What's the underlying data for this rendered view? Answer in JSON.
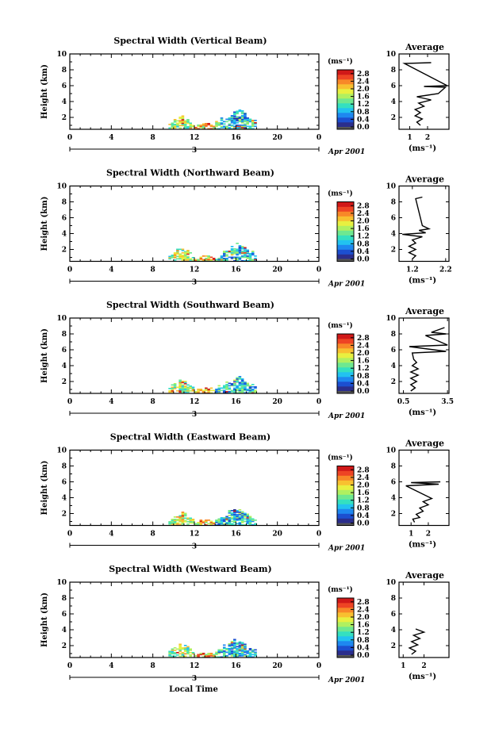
{
  "chart_data": {
    "type": "heatmap",
    "colorbar": {
      "label": "(ms⁻¹)",
      "ticks": [
        "0.0",
        "0.4",
        "0.8",
        "1.2",
        "1.6",
        "2.0",
        "2.4",
        "2.8"
      ],
      "range": [
        0.0,
        3.0
      ]
    },
    "shared": {
      "ylabel": "Height (km)",
      "yticks": [
        "2",
        "4",
        "6",
        "8",
        "10"
      ],
      "ylim": [
        0.5,
        10
      ],
      "xticks": [
        "0",
        "4",
        "8",
        "12",
        "16",
        "20",
        "0"
      ],
      "xlim": [
        0,
        24
      ],
      "date_day": "3",
      "date_label": "Apr 2001",
      "xlabel": "Local Time"
    },
    "panels": [
      {
        "title": "Spectral Width (Vertical Beam)",
        "avg_title": "Average",
        "avg_xticks": [
          "1",
          "2"
        ],
        "avg_xlim": [
          0.4,
          3.2
        ],
        "avg_xlabel": "(ms⁻¹)",
        "avg_profile": [
          [
            1.6,
            1.0
          ],
          [
            1.4,
            1.4
          ],
          [
            1.7,
            1.8
          ],
          [
            1.3,
            2.2
          ],
          [
            1.6,
            2.6
          ],
          [
            1.3,
            3.0
          ],
          [
            1.8,
            3.4
          ],
          [
            1.5,
            3.8
          ],
          [
            2.2,
            4.2
          ],
          [
            1.4,
            4.6
          ],
          [
            2.6,
            5.0
          ],
          [
            3.0,
            5.8
          ],
          [
            1.8,
            5.9
          ],
          [
            3.1,
            6.0
          ],
          [
            0.7,
            8.8
          ],
          [
            2.2,
            8.9
          ]
        ],
        "clusters": [
          [
            0.8,
            1.4,
            0.4,
            0.2,
            0.7
          ],
          [
            2.0,
            3.8,
            0.3,
            0.3,
            0.5
          ],
          [
            9.5,
            11.8,
            0.6,
            2.2,
            1.6
          ],
          [
            12.0,
            14.0,
            0.5,
            1.4,
            2.0
          ],
          [
            14.0,
            18.0,
            0.5,
            3.0,
            1.0
          ],
          [
            15.5,
            17.0,
            1.5,
            3.2,
            0.9
          ],
          [
            13.0,
            13.5,
            1.0,
            1.6,
            2.8
          ]
        ]
      },
      {
        "title": "Spectral Width (Northward Beam)",
        "avg_title": "Average",
        "avg_xticks": [
          "1.2",
          "2.2"
        ],
        "avg_xlim": [
          0.8,
          2.3
        ],
        "avg_xlabel": "(ms⁻¹)",
        "avg_profile": [
          [
            1.2,
            0.8
          ],
          [
            1.3,
            1.2
          ],
          [
            1.1,
            1.6
          ],
          [
            1.3,
            2.0
          ],
          [
            1.1,
            2.4
          ],
          [
            1.3,
            2.8
          ],
          [
            1.2,
            3.2
          ],
          [
            1.5,
            3.6
          ],
          [
            0.9,
            3.9
          ],
          [
            1.6,
            4.1
          ],
          [
            1.4,
            4.4
          ],
          [
            1.7,
            4.6
          ],
          [
            1.5,
            5.0
          ],
          [
            1.3,
            8.4
          ],
          [
            1.5,
            8.6
          ]
        ],
        "clusters": [
          [
            0.0,
            1.0,
            0.5,
            0.4,
            0.5
          ],
          [
            1.0,
            4.5,
            0.5,
            0.3,
            0.6
          ],
          [
            9.5,
            11.8,
            0.6,
            2.3,
            1.6
          ],
          [
            12.0,
            14.0,
            0.5,
            1.3,
            2.0
          ],
          [
            14.0,
            18.0,
            0.5,
            2.6,
            1.0
          ],
          [
            15.5,
            16.8,
            1.5,
            2.8,
            0.9
          ]
        ]
      },
      {
        "title": "Spectral Width (Southward Beam)",
        "avg_title": "Average",
        "avg_xticks": [
          "0.5",
          "3.5"
        ],
        "avg_xlim": [
          0.2,
          3.6
        ],
        "avg_xlabel": "(ms⁻¹)",
        "avg_profile": [
          [
            1.0,
            0.8
          ],
          [
            1.3,
            1.2
          ],
          [
            1.0,
            1.6
          ],
          [
            1.4,
            2.0
          ],
          [
            1.0,
            2.4
          ],
          [
            1.5,
            2.8
          ],
          [
            1.0,
            3.2
          ],
          [
            1.5,
            3.6
          ],
          [
            1.1,
            4.0
          ],
          [
            1.4,
            4.4
          ],
          [
            1.2,
            4.8
          ],
          [
            1.1,
            5.6
          ],
          [
            3.4,
            5.8
          ],
          [
            0.9,
            6.4
          ],
          [
            3.5,
            6.6
          ],
          [
            2.0,
            7.8
          ],
          [
            3.4,
            8.0
          ],
          [
            2.4,
            8.2
          ],
          [
            3.3,
            8.8
          ]
        ],
        "clusters": [
          [
            0.0,
            1.0,
            0.8,
            0.4,
            0.5
          ],
          [
            2.5,
            6.0,
            0.4,
            0.3,
            0.6
          ],
          [
            9.5,
            11.8,
            0.6,
            2.3,
            1.6
          ],
          [
            12.0,
            14.0,
            0.5,
            1.3,
            2.0
          ],
          [
            14.0,
            18.0,
            0.5,
            2.4,
            1.0
          ],
          [
            15.5,
            16.8,
            1.5,
            2.6,
            0.9
          ]
        ]
      },
      {
        "title": "Spectral Width (Eastward Beam)",
        "avg_title": "Average",
        "avg_xticks": [
          "1",
          "2"
        ],
        "avg_xlim": [
          0.3,
          3.2
        ],
        "avg_xlabel": "(ms⁻¹)",
        "avg_profile": [
          [
            1.2,
            0.9
          ],
          [
            1.1,
            1.3
          ],
          [
            1.5,
            1.5
          ],
          [
            1.3,
            1.9
          ],
          [
            1.7,
            2.3
          ],
          [
            1.5,
            2.7
          ],
          [
            2.0,
            3.1
          ],
          [
            1.7,
            3.5
          ],
          [
            2.2,
            3.9
          ],
          [
            0.7,
            5.5
          ],
          [
            2.6,
            5.7
          ],
          [
            1.0,
            5.9
          ],
          [
            2.7,
            6.0
          ]
        ],
        "clusters": [
          [
            0.8,
            4.5,
            0.5,
            0.3,
            0.6
          ],
          [
            9.5,
            11.8,
            0.6,
            2.2,
            1.6
          ],
          [
            12.0,
            14.0,
            0.5,
            1.3,
            2.0
          ],
          [
            14.0,
            18.0,
            0.5,
            2.6,
            1.0
          ],
          [
            15.5,
            16.8,
            1.5,
            2.9,
            0.9
          ],
          [
            19.5,
            20.5,
            0.5,
            0.3,
            0.3
          ]
        ]
      },
      {
        "title": "Spectral Width (Westward Beam)",
        "avg_title": "Average",
        "avg_xticks": [
          "1",
          "2"
        ],
        "avg_xlim": [
          0.8,
          3.2
        ],
        "avg_xlabel": "(ms⁻¹)",
        "avg_profile": [
          [
            1.4,
            0.9
          ],
          [
            1.6,
            1.3
          ],
          [
            1.3,
            1.7
          ],
          [
            1.7,
            2.1
          ],
          [
            1.4,
            2.5
          ],
          [
            1.8,
            2.9
          ],
          [
            1.5,
            3.3
          ],
          [
            2.0,
            3.7
          ],
          [
            1.6,
            4.1
          ]
        ],
        "clusters": [
          [
            0.8,
            4.5,
            0.5,
            0.4,
            0.6
          ],
          [
            9.5,
            11.8,
            0.6,
            2.2,
            1.6
          ],
          [
            12.0,
            14.0,
            0.5,
            1.3,
            2.0
          ],
          [
            14.0,
            18.0,
            0.5,
            2.7,
            1.0
          ],
          [
            15.5,
            16.8,
            1.5,
            3.2,
            0.9
          ],
          [
            19.0,
            20.0,
            0.5,
            0.3,
            0.4
          ]
        ]
      }
    ]
  }
}
